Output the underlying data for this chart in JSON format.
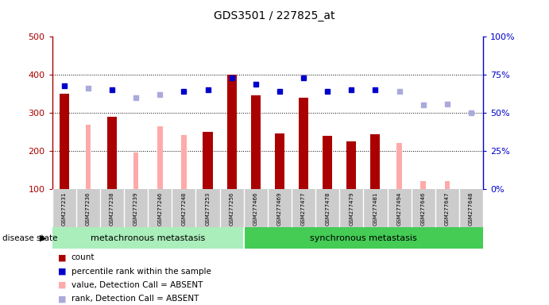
{
  "title": "GDS3501 / 227825_at",
  "samples": [
    "GSM277231",
    "GSM277236",
    "GSM277238",
    "GSM277239",
    "GSM277246",
    "GSM277248",
    "GSM277253",
    "GSM277256",
    "GSM277466",
    "GSM277469",
    "GSM277477",
    "GSM277478",
    "GSM277479",
    "GSM277481",
    "GSM277494",
    "GSM277646",
    "GSM277647",
    "GSM277648"
  ],
  "groups": [
    {
      "name": "metachronous metastasis",
      "start": 0,
      "end": 7
    },
    {
      "name": "synchronous metastasis",
      "start": 8,
      "end": 17
    }
  ],
  "red_bars": [
    350,
    null,
    290,
    null,
    null,
    null,
    250,
    400,
    345,
    245,
    340,
    240,
    225,
    243,
    null,
    null,
    null,
    null
  ],
  "pink_bars": [
    null,
    268,
    null,
    197,
    265,
    242,
    null,
    null,
    null,
    null,
    null,
    null,
    null,
    null,
    220,
    120,
    120,
    null
  ],
  "blue_squares": [
    68,
    null,
    65,
    null,
    null,
    64,
    65,
    73,
    69,
    64,
    73,
    64,
    65,
    65,
    null,
    null,
    null,
    null
  ],
  "lavender_squares": [
    null,
    66,
    null,
    60,
    62,
    null,
    null,
    null,
    null,
    null,
    null,
    null,
    null,
    null,
    64,
    55,
    56,
    50
  ],
  "ylim_left": [
    100,
    500
  ],
  "ylim_right": [
    0,
    100
  ],
  "yticks_left": [
    100,
    200,
    300,
    400,
    500
  ],
  "yticks_right": [
    0,
    25,
    50,
    75,
    100
  ],
  "group_color_meta": "#aaeebb",
  "group_color_sync": "#44cc55",
  "bar_width": 0.4,
  "red_color": "#aa0000",
  "pink_color": "#ffaaaa",
  "blue_color": "#0000cc",
  "lavender_color": "#aaaadd",
  "bg_color": "#cccccc",
  "legend_items": [
    {
      "label": "count",
      "color": "#aa0000"
    },
    {
      "label": "percentile rank within the sample",
      "color": "#0000cc"
    },
    {
      "label": "value, Detection Call = ABSENT",
      "color": "#ffaaaa"
    },
    {
      "label": "rank, Detection Call = ABSENT",
      "color": "#aaaadd"
    }
  ]
}
